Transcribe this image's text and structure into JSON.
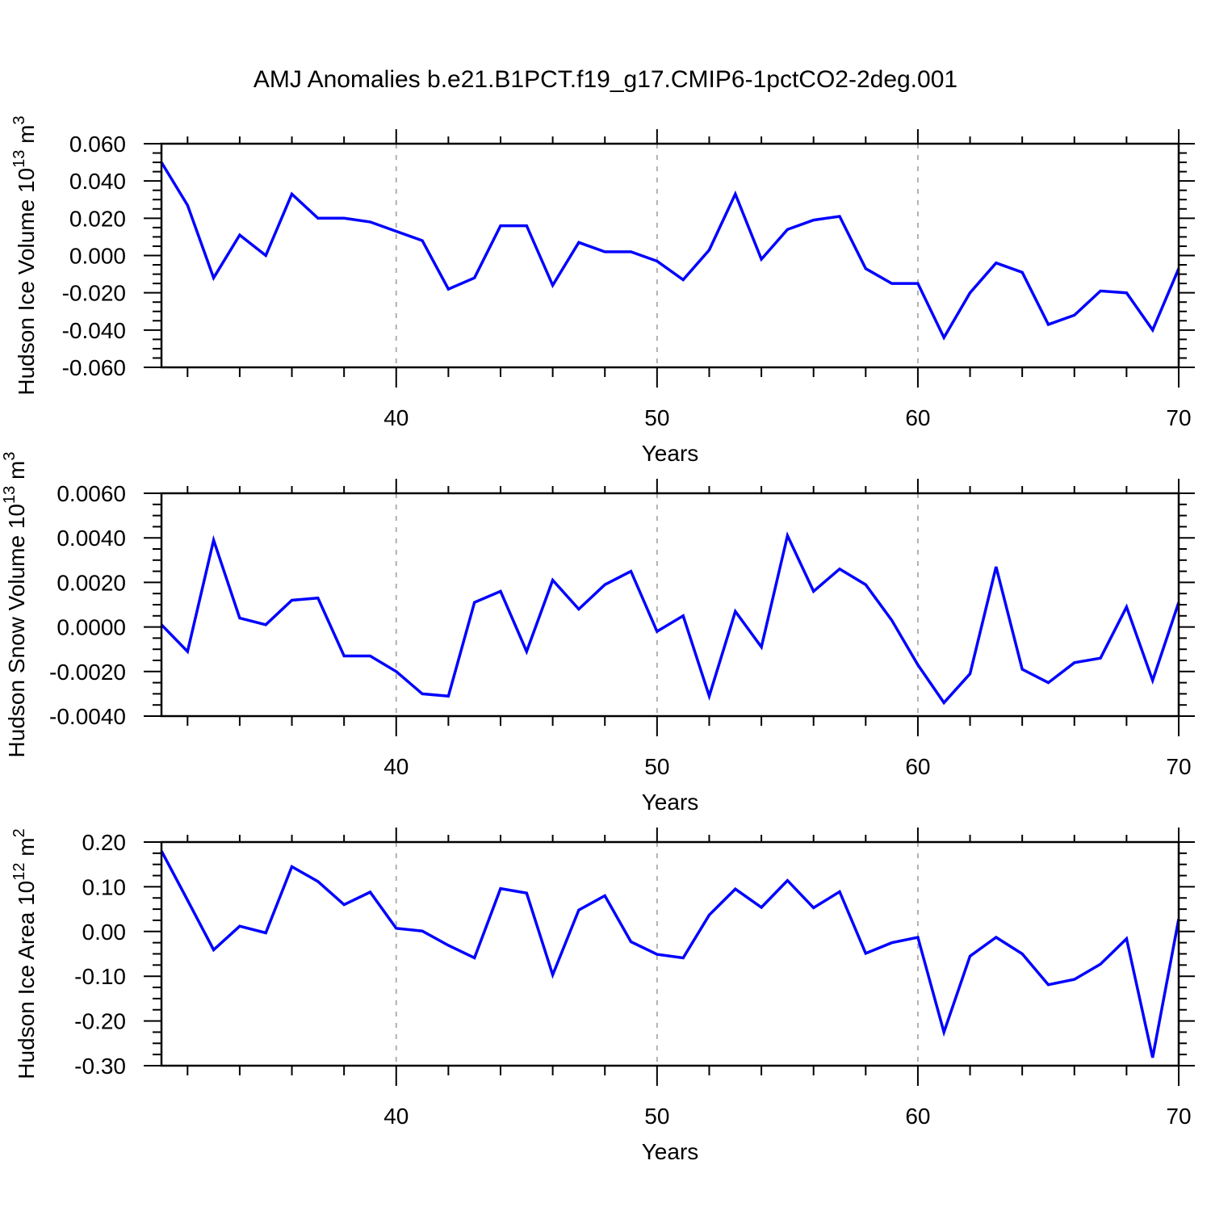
{
  "title": "AMJ Anomalies b.e21.B1PCT.f19_g17.CMIP6-1pctCO2-2deg.001",
  "colors": {
    "line": "#0000ff",
    "axis": "#000000",
    "gridline": "#b0b0b0",
    "background": "#ffffff"
  },
  "chart_data": [
    {
      "type": "line",
      "name": "hudson-ice-volume",
      "ylabel_parts": [
        {
          "t": "Hudson Ice Volume 10"
        },
        {
          "t": "13",
          "sup": true
        },
        {
          "t": " m"
        },
        {
          "t": "3",
          "sup": true
        }
      ],
      "xlabel": "Years",
      "xlim": [
        31,
        70
      ],
      "ylim": [
        -0.06,
        0.06
      ],
      "ytick_step": 0.02,
      "yminor_step": 0.005,
      "ytick_decimals": 3,
      "xminor_every": 2,
      "xticks_labeled": [
        40,
        50,
        60,
        70
      ],
      "gridlines_x": [
        40,
        50,
        60
      ],
      "x": [
        31,
        32,
        33,
        34,
        35,
        36,
        37,
        38,
        39,
        40,
        41,
        42,
        43,
        44,
        45,
        46,
        47,
        48,
        49,
        50,
        51,
        52,
        53,
        54,
        55,
        56,
        57,
        58,
        59,
        60,
        61,
        62,
        63,
        64,
        65,
        66,
        67,
        68,
        69,
        70
      ],
      "values": [
        0.05,
        0.027,
        -0.012,
        0.011,
        0.0,
        0.033,
        0.02,
        0.02,
        0.018,
        0.013,
        0.008,
        -0.018,
        -0.012,
        0.016,
        0.016,
        -0.016,
        0.007,
        0.002,
        0.002,
        -0.003,
        -0.013,
        0.003,
        0.033,
        -0.002,
        0.014,
        0.019,
        0.021,
        -0.007,
        -0.015,
        -0.015,
        -0.044,
        -0.02,
        -0.004,
        -0.009,
        -0.037,
        -0.032,
        -0.019,
        -0.02,
        -0.04,
        -0.007
      ]
    },
    {
      "type": "line",
      "name": "hudson-snow-volume",
      "ylabel_parts": [
        {
          "t": "Hudson Snow Volume 10"
        },
        {
          "t": "13",
          "sup": true
        },
        {
          "t": " m"
        },
        {
          "t": "3",
          "sup": true
        }
      ],
      "xlabel": "Years",
      "xlim": [
        31,
        70
      ],
      "ylim": [
        -0.004,
        0.006
      ],
      "ytick_step": 0.002,
      "yminor_step": 0.0005,
      "ytick_decimals": 4,
      "xminor_every": 2,
      "xticks_labeled": [
        40,
        50,
        60,
        70
      ],
      "gridlines_x": [
        40,
        50,
        60
      ],
      "x": [
        31,
        32,
        33,
        34,
        35,
        36,
        37,
        38,
        39,
        40,
        41,
        42,
        43,
        44,
        45,
        46,
        47,
        48,
        49,
        50,
        51,
        52,
        53,
        54,
        55,
        56,
        57,
        58,
        59,
        60,
        61,
        62,
        63,
        64,
        65,
        66,
        67,
        68,
        69,
        70
      ],
      "values": [
        0.0001,
        -0.0011,
        0.0039,
        0.0004,
        0.0001,
        0.0012,
        0.0013,
        -0.0013,
        -0.0013,
        -0.002,
        -0.003,
        -0.0031,
        0.0011,
        0.0016,
        -0.0011,
        0.0021,
        0.0008,
        0.0019,
        0.0025,
        -0.0002,
        0.0005,
        -0.0031,
        0.0007,
        -0.0009,
        0.0041,
        0.0016,
        0.0026,
        0.0019,
        0.0003,
        -0.0017,
        -0.0034,
        -0.0021,
        0.0027,
        -0.0019,
        -0.0025,
        -0.0016,
        -0.0014,
        0.0009,
        -0.0024,
        0.0011
      ]
    },
    {
      "type": "line",
      "name": "hudson-ice-area",
      "ylabel_parts": [
        {
          "t": "Hudson Ice Area 10"
        },
        {
          "t": "12",
          "sup": true
        },
        {
          "t": " m"
        },
        {
          "t": "2",
          "sup": true
        }
      ],
      "xlabel": "Years",
      "xlim": [
        31,
        70
      ],
      "ylim": [
        -0.3,
        0.2
      ],
      "ytick_step": 0.1,
      "yminor_step": 0.025,
      "ytick_decimals": 2,
      "xminor_every": 2,
      "xticks_labeled": [
        40,
        50,
        60,
        70
      ],
      "gridlines_x": [
        40,
        50,
        60
      ],
      "x": [
        31,
        32,
        33,
        34,
        35,
        36,
        37,
        38,
        39,
        40,
        41,
        42,
        43,
        44,
        45,
        46,
        47,
        48,
        49,
        50,
        51,
        52,
        53,
        54,
        55,
        56,
        57,
        58,
        59,
        60,
        61,
        62,
        63,
        64,
        65,
        66,
        67,
        68,
        69,
        70
      ],
      "values": [
        0.18,
        0.07,
        -0.041,
        0.012,
        -0.003,
        0.145,
        0.112,
        0.06,
        0.088,
        0.007,
        0.001,
        -0.031,
        -0.059,
        0.096,
        0.086,
        -0.097,
        0.048,
        0.08,
        -0.023,
        -0.051,
        -0.059,
        0.037,
        0.095,
        0.054,
        0.114,
        0.053,
        0.089,
        -0.049,
        -0.025,
        -0.013,
        -0.225,
        -0.055,
        -0.013,
        -0.05,
        -0.119,
        -0.107,
        -0.073,
        -0.016,
        -0.282,
        0.028
      ]
    }
  ]
}
